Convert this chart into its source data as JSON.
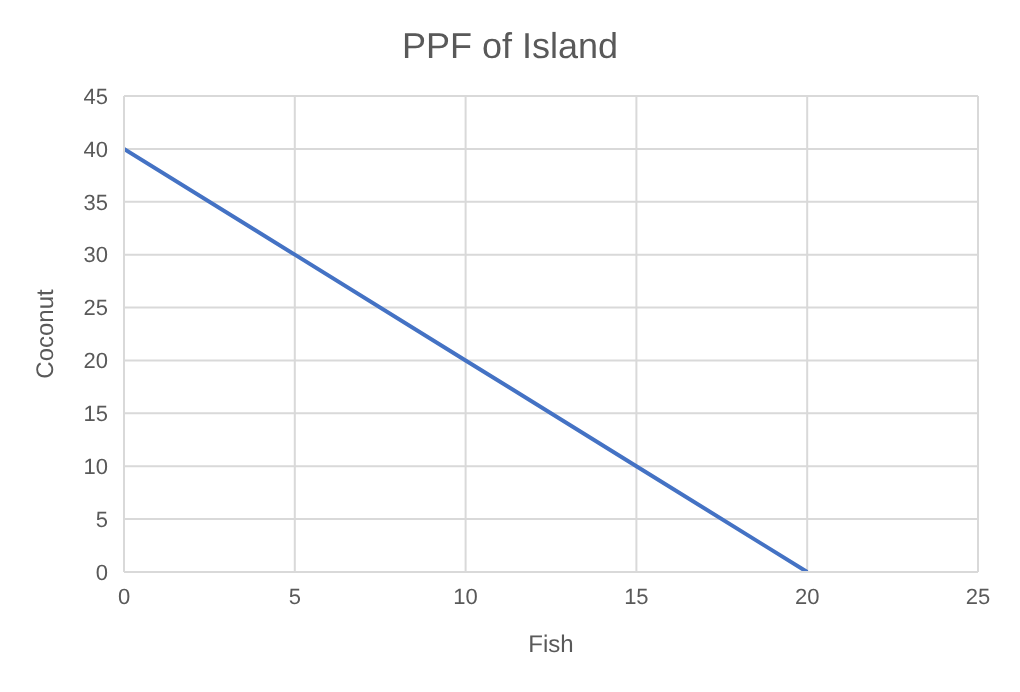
{
  "chart_data": {
    "type": "line",
    "title": "PPF of Island",
    "xlabel": "Fish",
    "ylabel": "Coconut",
    "x": [
      0,
      5,
      10,
      15,
      20
    ],
    "series": [
      {
        "color": "#4472c4",
        "values": [
          40,
          30,
          20,
          10,
          0
        ]
      }
    ],
    "xlim": [
      0,
      25
    ],
    "xticks": [
      0,
      5,
      10,
      15,
      20,
      25
    ],
    "ylim": [
      0,
      45
    ],
    "yticks": [
      0,
      5,
      10,
      15,
      20,
      25,
      30,
      35,
      40,
      45
    ],
    "grid": true,
    "legend": false,
    "marker": "none",
    "line_style": "solid"
  }
}
